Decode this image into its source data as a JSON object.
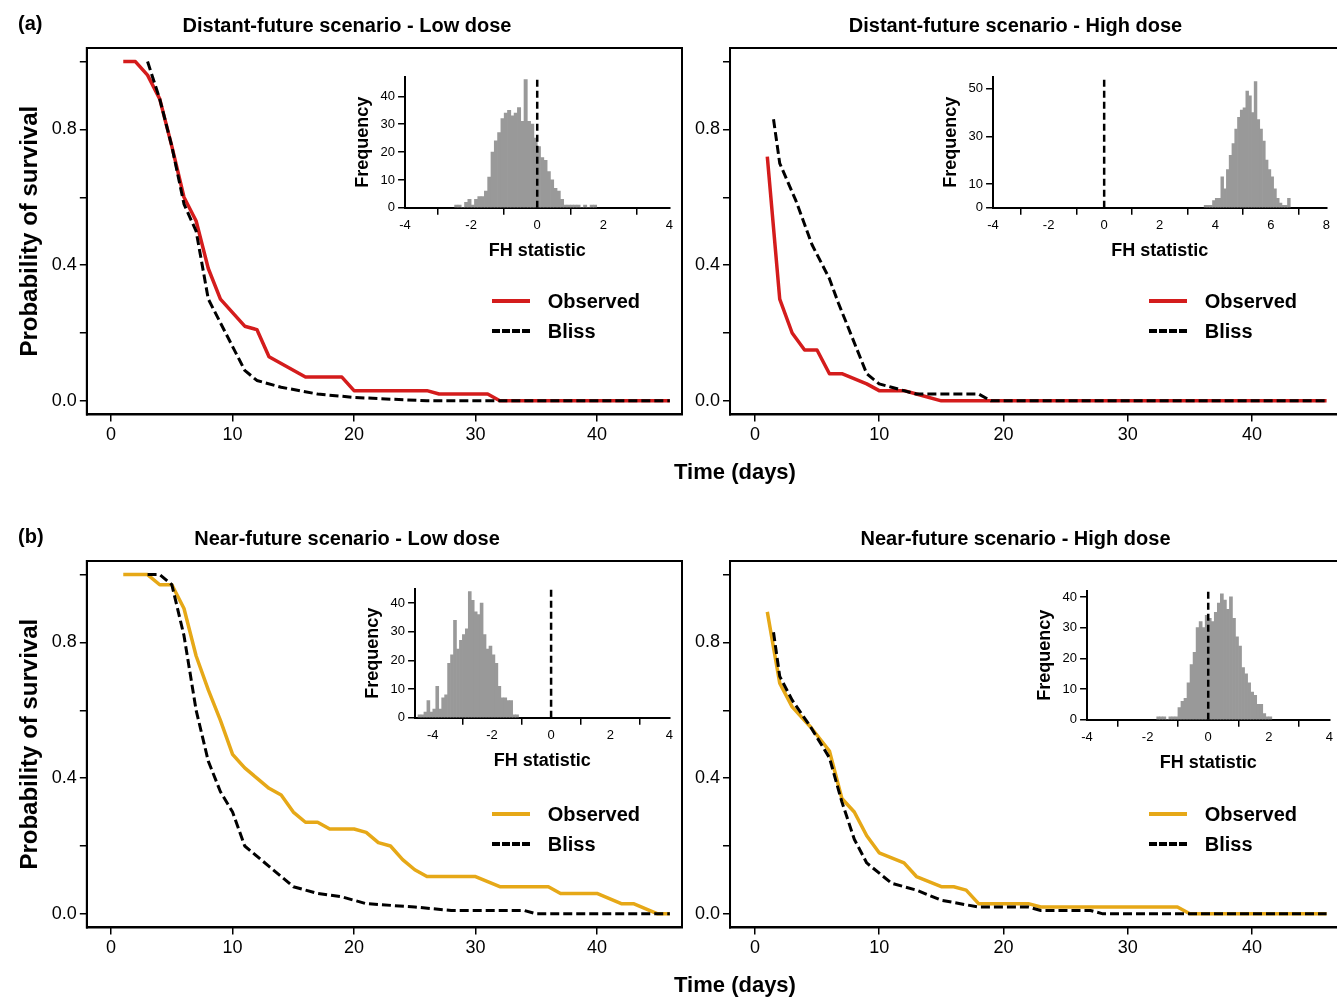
{
  "chart_data": [
    {
      "type": "line",
      "title": "Distant-future scenario - Low dose",
      "xlabel": "Time (days)",
      "ylabel": "Probability of survival",
      "annotations": [
        "(a)"
      ],
      "legend": "right",
      "grid": false,
      "xlim": [
        -2,
        47
      ],
      "xticks": [
        0,
        10,
        20,
        30,
        40
      ],
      "ylim": [
        -0.04,
        1.04
      ],
      "yticks": [
        {
          "value": 0,
          "label": "0.0"
        },
        {
          "value": 0.2,
          "label": null
        },
        {
          "value": 0.4,
          "label": "0.4"
        },
        {
          "value": 0.6,
          "label": null
        },
        {
          "value": 0.8,
          "label": "0.8"
        },
        {
          "value": 1,
          "label": null
        }
      ],
      "series": [
        {
          "name": "Observed",
          "color": "#d41c1c",
          "line_style": "solid",
          "x": [
            1,
            2,
            3,
            4,
            5,
            6,
            7,
            8,
            9,
            10,
            11,
            12,
            13,
            14,
            16,
            19,
            20,
            26,
            27,
            31,
            32,
            46
          ],
          "values": [
            1,
            1,
            0.96,
            0.89,
            0.75,
            0.6,
            0.53,
            0.39,
            0.3,
            0.26,
            0.22,
            0.21,
            0.13,
            0.11,
            0.07,
            0.07,
            0.03,
            0.03,
            0.02,
            0.02,
            0,
            0
          ]
        },
        {
          "name": "Bliss",
          "color": "#000000",
          "line_style": "dashed",
          "x": [
            3,
            4,
            5,
            6,
            7,
            8,
            9,
            11,
            12,
            14,
            17,
            20,
            26,
            46
          ],
          "values": [
            1,
            0.89,
            0.75,
            0.58,
            0.5,
            0.3,
            0.23,
            0.09,
            0.06,
            0.04,
            0.02,
            0.01,
            0,
            0
          ]
        }
      ]
    },
    {
      "type": "histogram",
      "xlabel": "FH statistic",
      "ylabel": "Frequency",
      "color": "#999999",
      "grid": false,
      "xlim": [
        -4,
        4
      ],
      "xticks": [
        -4,
        -2,
        0,
        2,
        4
      ],
      "ylim": [
        0,
        47
      ],
      "yticks": [
        0,
        10,
        20,
        30,
        40
      ],
      "ref_lines": [
        {
          "axis": "x",
          "value": 0,
          "color": "#000000",
          "line_style": "dashed"
        }
      ],
      "bins": [
        -2.5,
        -2.4,
        -2.3,
        -2.2,
        -2.1,
        -2.0,
        -1.9,
        -1.8,
        -1.7,
        -1.6,
        -1.5,
        -1.4,
        -1.3,
        -1.2,
        -1.1,
        -1.0,
        -0.9,
        -0.8,
        -0.7,
        -0.6,
        -0.5,
        -0.4,
        -0.3,
        -0.2,
        -0.1,
        0.0,
        0.1,
        0.2,
        0.3,
        0.4,
        0.5,
        0.6,
        0.7,
        0.8,
        0.9,
        1.0,
        1.1,
        1.2,
        1.3,
        1.4,
        1.5,
        1.6,
        1.7,
        1.8
      ],
      "values": [
        1,
        1,
        0,
        2,
        3,
        1,
        3,
        4,
        4,
        6,
        11,
        20,
        24,
        27,
        32,
        34,
        35,
        33,
        34,
        36,
        31,
        46,
        31,
        30,
        25,
        22,
        18,
        17,
        13,
        10,
        7,
        6,
        3,
        1,
        1,
        1,
        1,
        1,
        0,
        1,
        0,
        1,
        1
      ]
    },
    {
      "type": "line",
      "title": "Distant-future scenario - High dose",
      "legend": "right",
      "grid": false,
      "xlim": [
        -2,
        47
      ],
      "xticks": [
        0,
        10,
        20,
        30,
        40
      ],
      "ylim": [
        -0.04,
        1.04
      ],
      "yticks": [
        {
          "value": 0,
          "label": "0.0"
        },
        {
          "value": 0.2,
          "label": null
        },
        {
          "value": 0.4,
          "label": "0.4"
        },
        {
          "value": 0.6,
          "label": null
        },
        {
          "value": 0.8,
          "label": "0.8"
        },
        {
          "value": 1,
          "label": null
        }
      ],
      "series": [
        {
          "name": "Observed",
          "color": "#d41c1c",
          "line_style": "solid",
          "x": [
            1,
            2,
            3,
            4,
            5,
            6,
            7,
            9,
            10,
            12,
            13,
            15,
            46
          ],
          "values": [
            0.72,
            0.3,
            0.2,
            0.15,
            0.15,
            0.08,
            0.08,
            0.05,
            0.03,
            0.03,
            0.02,
            0,
            0
          ]
        },
        {
          "name": "Bliss",
          "color": "#000000",
          "line_style": "dashed",
          "x": [
            1.5,
            2,
            3.3,
            4.6,
            6,
            6.7,
            9,
            10,
            11,
            13,
            18,
            19,
            46
          ],
          "values": [
            0.83,
            0.7,
            0.59,
            0.46,
            0.36,
            0.29,
            0.08,
            0.05,
            0.04,
            0.02,
            0.02,
            0,
            0
          ]
        }
      ]
    },
    {
      "type": "histogram",
      "xlabel": "FH statistic",
      "ylabel": "Frequency",
      "color": "#999999",
      "grid": false,
      "xlim": [
        -4,
        8
      ],
      "xticks": [
        -4,
        -2,
        0,
        2,
        4,
        6,
        8
      ],
      "ylim": [
        0,
        55
      ],
      "yticks": [
        0,
        10,
        30,
        50
      ],
      "ref_lines": [
        {
          "axis": "x",
          "value": 0,
          "color": "#000000",
          "line_style": "dashed"
        }
      ],
      "bins": [
        3.6,
        3.7,
        3.8,
        3.9,
        4.0,
        4.1,
        4.2,
        4.3,
        4.4,
        4.5,
        4.6,
        4.7,
        4.8,
        4.9,
        5.0,
        5.1,
        5.2,
        5.3,
        5.4,
        5.5,
        5.6,
        5.7,
        5.8,
        5.9,
        6.0,
        6.1,
        6.2,
        6.3,
        6.4,
        6.5,
        6.6,
        6.7
      ],
      "values": [
        1,
        1,
        1,
        3,
        4,
        4,
        13,
        8,
        16,
        22,
        27,
        33,
        38,
        41,
        42,
        49,
        47,
        40,
        53,
        37,
        33,
        28,
        20,
        16,
        13,
        8,
        4,
        2,
        1,
        1,
        4
      ]
    },
    {
      "type": "line",
      "title": "Near-future scenario - Low dose",
      "xlabel": "Time (days)",
      "ylabel": "Probability of survival",
      "annotations": [
        "(b)"
      ],
      "legend": "right",
      "grid": false,
      "xlim": [
        -2,
        47
      ],
      "xticks": [
        0,
        10,
        20,
        30,
        40
      ],
      "ylim": [
        -0.04,
        1.04
      ],
      "yticks": [
        {
          "value": 0,
          "label": "0.0"
        },
        {
          "value": 0.2,
          "label": null
        },
        {
          "value": 0.4,
          "label": "0.4"
        },
        {
          "value": 0.6,
          "label": null
        },
        {
          "value": 0.8,
          "label": "0.8"
        },
        {
          "value": 1,
          "label": null
        }
      ],
      "series": [
        {
          "name": "Observed",
          "color": "#e6a817",
          "line_style": "solid",
          "x": [
            1,
            3,
            4,
            5,
            6,
            7,
            8,
            9,
            10,
            11,
            12,
            13,
            14,
            15,
            16,
            17,
            18,
            20,
            21,
            22,
            23,
            24,
            25,
            26,
            30,
            32,
            36,
            37,
            40,
            42,
            43,
            45,
            46
          ],
          "values": [
            1,
            1,
            0.97,
            0.97,
            0.9,
            0.76,
            0.66,
            0.57,
            0.47,
            0.43,
            0.4,
            0.37,
            0.35,
            0.3,
            0.27,
            0.27,
            0.25,
            0.25,
            0.24,
            0.21,
            0.2,
            0.16,
            0.13,
            0.11,
            0.11,
            0.08,
            0.08,
            0.06,
            0.06,
            0.03,
            0.03,
            0,
            0
          ]
        },
        {
          "name": "Bliss",
          "color": "#000000",
          "line_style": "dashed",
          "x": [
            3,
            4,
            5,
            6,
            7,
            8,
            9,
            10,
            11,
            13,
            15,
            17,
            19,
            21,
            25,
            28,
            34,
            35,
            46
          ],
          "values": [
            1,
            1,
            0.97,
            0.82,
            0.6,
            0.45,
            0.36,
            0.3,
            0.2,
            0.14,
            0.08,
            0.06,
            0.05,
            0.03,
            0.02,
            0.01,
            0.01,
            0,
            0
          ]
        }
      ]
    },
    {
      "type": "histogram",
      "xlabel": "FH statistic",
      "ylabel": "Frequency",
      "color": "#999999",
      "grid": false,
      "xlim": [
        -4.6,
        4
      ],
      "xticks": [
        -4,
        -2,
        0,
        2,
        4
      ],
      "ylim": [
        0,
        45
      ],
      "yticks": [
        0,
        10,
        20,
        30,
        40
      ],
      "ref_lines": [
        {
          "axis": "x",
          "value": 0,
          "color": "#000000",
          "line_style": "dashed"
        }
      ],
      "bins": [
        -4.5,
        -4.4,
        -4.3,
        -4.2,
        -4.1,
        -4.0,
        -3.9,
        -3.8,
        -3.7,
        -3.6,
        -3.5,
        -3.4,
        -3.3,
        -3.2,
        -3.1,
        -3.0,
        -2.9,
        -2.8,
        -2.7,
        -2.6,
        -2.5,
        -2.4,
        -2.3,
        -2.2,
        -2.1,
        -2.0,
        -1.9,
        -1.8,
        -1.7,
        -1.6,
        -1.5,
        -1.4,
        -1.3,
        -1.2,
        -1.1
      ],
      "values": [
        1,
        1,
        2,
        6,
        2,
        3,
        11,
        3,
        7,
        8,
        19,
        22,
        34,
        24,
        27,
        29,
        31,
        44,
        41,
        37,
        36,
        40,
        29,
        24,
        25,
        22,
        19,
        11,
        7,
        7,
        6,
        6,
        1,
        1
      ]
    },
    {
      "type": "line",
      "title": "Near-future scenario - High dose",
      "legend": "right",
      "grid": false,
      "xlim": [
        -2,
        47
      ],
      "xticks": [
        0,
        10,
        20,
        30,
        40
      ],
      "ylim": [
        -0.04,
        1.04
      ],
      "yticks": [
        {
          "value": 0,
          "label": "0.0"
        },
        {
          "value": 0.2,
          "label": null
        },
        {
          "value": 0.4,
          "label": "0.4"
        },
        {
          "value": 0.6,
          "label": null
        },
        {
          "value": 0.8,
          "label": "0.8"
        },
        {
          "value": 1,
          "label": null
        }
      ],
      "series": [
        {
          "name": "Observed",
          "color": "#e6a817",
          "line_style": "solid",
          "x": [
            1,
            2,
            3,
            4.5,
            6,
            7,
            8,
            9,
            10,
            12,
            13,
            15,
            16,
            17,
            18,
            22,
            23,
            34,
            35,
            46
          ],
          "values": [
            0.89,
            0.68,
            0.61,
            0.55,
            0.48,
            0.34,
            0.3,
            0.23,
            0.18,
            0.15,
            0.11,
            0.08,
            0.08,
            0.07,
            0.03,
            0.03,
            0.02,
            0.02,
            0,
            0
          ]
        },
        {
          "name": "Bliss",
          "color": "#000000",
          "line_style": "dashed",
          "x": [
            1.5,
            2,
            3,
            4.5,
            6,
            7,
            8,
            9,
            11,
            13,
            15,
            18,
            22,
            23,
            27,
            28,
            46
          ],
          "values": [
            0.83,
            0.7,
            0.63,
            0.55,
            0.46,
            0.33,
            0.22,
            0.15,
            0.09,
            0.07,
            0.04,
            0.02,
            0.02,
            0.01,
            0.01,
            0,
            0
          ]
        }
      ]
    },
    {
      "type": "histogram",
      "xlabel": "FH statistic",
      "ylabel": "Frequency",
      "color": "#999999",
      "grid": false,
      "xlim": [
        -4,
        4
      ],
      "xticks": [
        -4,
        -2,
        0,
        2,
        4
      ],
      "ylim": [
        0,
        42
      ],
      "yticks": [
        0,
        10,
        20,
        30,
        40
      ],
      "ref_lines": [
        {
          "axis": "x",
          "value": 0,
          "color": "#000000",
          "line_style": "dashed"
        }
      ],
      "bins": [
        -1.7,
        -1.6,
        -1.5,
        -1.4,
        -1.3,
        -1.2,
        -1.1,
        -1.0,
        -0.9,
        -0.8,
        -0.7,
        -0.6,
        -0.5,
        -0.4,
        -0.3,
        -0.2,
        -0.1,
        0.0,
        0.1,
        0.2,
        0.3,
        0.4,
        0.5,
        0.6,
        0.7,
        0.8,
        0.9,
        1.0,
        1.1,
        1.2,
        1.3,
        1.4,
        1.5,
        1.6,
        1.7,
        1.8,
        1.9,
        2.0,
        2.1
      ],
      "values": [
        1,
        1,
        1,
        0,
        1,
        1,
        1,
        4,
        6,
        7,
        12,
        18,
        22,
        30,
        32,
        30,
        34,
        33,
        32,
        35,
        38,
        41,
        39,
        36,
        40,
        33,
        27,
        24,
        17,
        15,
        12,
        9,
        8,
        5,
        5,
        2,
        1,
        1
      ]
    }
  ]
}
